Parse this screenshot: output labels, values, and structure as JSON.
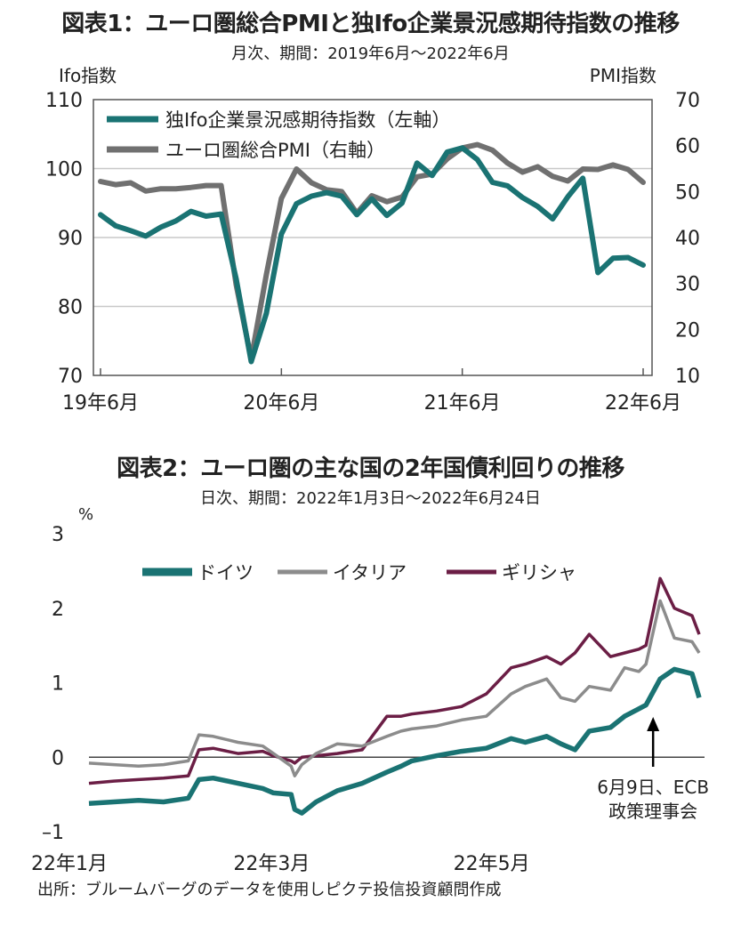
{
  "chart_data": [
    {
      "type": "line",
      "title": "図表1：ユーロ圏総合PMIと独Ifo企業景況感期待指数の推移",
      "subtitle": "月次、期間：2019年6月～2022年6月",
      "y_left_label": "Ifo指数",
      "y_right_label": "PMI指数",
      "y_left_ticks": [
        "70",
        "80",
        "90",
        "100",
        "110"
      ],
      "y_right_ticks": [
        "10",
        "20",
        "30",
        "40",
        "50",
        "60",
        "70"
      ],
      "ylim_left": [
        70,
        110
      ],
      "ylim_right": [
        10,
        70
      ],
      "x_tick_labels": [
        "19年6月",
        "20年6月",
        "21年6月",
        "22年6月"
      ],
      "x_tick_months": [
        0,
        12,
        24,
        36
      ],
      "x": [
        0,
        1,
        2,
        3,
        4,
        5,
        6,
        7,
        8,
        9,
        10,
        11,
        12,
        13,
        14,
        15,
        16,
        17,
        18,
        19,
        20,
        21,
        22,
        23,
        24,
        25,
        26,
        27,
        28,
        29,
        30,
        31,
        32,
        33,
        34,
        35,
        36
      ],
      "grid": true,
      "legend_position": "top-left",
      "series": [
        {
          "name": "独Ifo企業景況感期待指数（左軸）",
          "axis": "left",
          "color": "#1a7373",
          "values": [
            93.3,
            91.7,
            91.0,
            90.2,
            91.5,
            92.4,
            93.8,
            93.1,
            93.4,
            84.0,
            72.0,
            79.0,
            90.5,
            94.9,
            96.0,
            96.5,
            96.0,
            93.3,
            95.6,
            93.2,
            95.0,
            100.8,
            99.0,
            102.4,
            103.0,
            101.3,
            98.0,
            97.5,
            95.8,
            94.5,
            92.7,
            95.9,
            98.6,
            84.9,
            87.0,
            87.1,
            86.0
          ]
        },
        {
          "name": "ユーロ圏総合PMI（右軸）",
          "axis": "right",
          "color": "#707070",
          "values": [
            52.2,
            51.5,
            51.9,
            50.1,
            50.6,
            50.6,
            50.9,
            51.3,
            51.3,
            29.7,
            13.6,
            31.9,
            48.5,
            54.9,
            51.9,
            50.4,
            50.0,
            45.3,
            49.1,
            47.8,
            48.8,
            53.2,
            53.8,
            57.1,
            59.5,
            60.2,
            59.0,
            56.2,
            54.2,
            55.4,
            53.3,
            52.3,
            54.9,
            54.8,
            55.8,
            54.8,
            52.0
          ]
        }
      ]
    },
    {
      "type": "line",
      "title": "図表2：ユーロ圏の主な国の2年国債利回りの推移",
      "subtitle": "日次、期間：2022年1月3日～2022年6月24日",
      "ylabel": "%",
      "y_ticks": [
        "–1",
        "0",
        "1",
        "2",
        "3"
      ],
      "ylim": [
        -1,
        3
      ],
      "x_tick_labels": [
        "22年1月",
        "22年3月",
        "22年5月"
      ],
      "x_tick_dates": [
        "2022-01-03",
        "2022-03-01",
        "2022-05-02"
      ],
      "x_end_date": "2022-06-24",
      "legend_position": "top",
      "annotation": {
        "lines": [
          "6月9日、ECB",
          "政策理事会"
        ],
        "date": "2022-06-09"
      },
      "series": [
        {
          "name": "ドイツ",
          "color": "#1a7373",
          "dates": [
            "2022-01-03",
            "2022-01-10",
            "2022-01-17",
            "2022-01-24",
            "2022-01-31",
            "2022-02-03",
            "2022-02-07",
            "2022-02-14",
            "2022-02-21",
            "2022-02-24",
            "2022-03-01",
            "2022-03-02",
            "2022-03-04",
            "2022-03-08",
            "2022-03-14",
            "2022-03-21",
            "2022-03-28",
            "2022-04-01",
            "2022-04-04",
            "2022-04-11",
            "2022-04-18",
            "2022-04-25",
            "2022-05-02",
            "2022-05-06",
            "2022-05-12",
            "2022-05-16",
            "2022-05-20",
            "2022-05-24",
            "2022-05-30",
            "2022-06-03",
            "2022-06-07",
            "2022-06-09",
            "2022-06-13",
            "2022-06-17",
            "2022-06-22",
            "2022-06-24"
          ],
          "values": [
            -0.62,
            -0.6,
            -0.58,
            -0.6,
            -0.55,
            -0.3,
            -0.28,
            -0.35,
            -0.42,
            -0.48,
            -0.5,
            -0.7,
            -0.75,
            -0.6,
            -0.45,
            -0.35,
            -0.2,
            -0.12,
            -0.05,
            0.02,
            0.08,
            0.12,
            0.25,
            0.2,
            0.28,
            0.18,
            0.1,
            0.35,
            0.4,
            0.55,
            0.65,
            0.7,
            1.05,
            1.18,
            1.12,
            0.8
          ]
        },
        {
          "name": "イタリア",
          "color": "#8c8c8c",
          "dates": [
            "2022-01-03",
            "2022-01-10",
            "2022-01-17",
            "2022-01-24",
            "2022-01-31",
            "2022-02-03",
            "2022-02-07",
            "2022-02-14",
            "2022-02-21",
            "2022-02-24",
            "2022-03-01",
            "2022-03-02",
            "2022-03-04",
            "2022-03-08",
            "2022-03-14",
            "2022-03-21",
            "2022-03-28",
            "2022-04-01",
            "2022-04-04",
            "2022-04-11",
            "2022-04-18",
            "2022-04-25",
            "2022-05-02",
            "2022-05-06",
            "2022-05-12",
            "2022-05-16",
            "2022-05-20",
            "2022-05-24",
            "2022-05-30",
            "2022-06-03",
            "2022-06-07",
            "2022-06-09",
            "2022-06-13",
            "2022-06-17",
            "2022-06-22",
            "2022-06-24"
          ],
          "values": [
            -0.08,
            -0.1,
            -0.12,
            -0.1,
            -0.05,
            0.3,
            0.28,
            0.2,
            0.15,
            0.05,
            -0.12,
            -0.25,
            -0.1,
            0.05,
            0.18,
            0.15,
            0.28,
            0.35,
            0.38,
            0.42,
            0.5,
            0.55,
            0.85,
            0.95,
            1.05,
            0.8,
            0.75,
            0.95,
            0.9,
            1.2,
            1.15,
            1.25,
            2.1,
            1.6,
            1.55,
            1.4
          ]
        },
        {
          "name": "ギリシャ",
          "color": "#6b1e45",
          "dates": [
            "2022-01-03",
            "2022-01-10",
            "2022-01-17",
            "2022-01-24",
            "2022-01-31",
            "2022-02-03",
            "2022-02-07",
            "2022-02-14",
            "2022-02-21",
            "2022-02-24",
            "2022-03-01",
            "2022-03-02",
            "2022-03-04",
            "2022-03-08",
            "2022-03-14",
            "2022-03-21",
            "2022-03-28",
            "2022-04-01",
            "2022-04-04",
            "2022-04-11",
            "2022-04-18",
            "2022-04-25",
            "2022-05-02",
            "2022-05-06",
            "2022-05-12",
            "2022-05-16",
            "2022-05-20",
            "2022-05-24",
            "2022-05-30",
            "2022-06-03",
            "2022-06-07",
            "2022-06-09",
            "2022-06-13",
            "2022-06-17",
            "2022-06-22",
            "2022-06-24"
          ],
          "values": [
            -0.35,
            -0.32,
            -0.3,
            -0.28,
            -0.25,
            0.1,
            0.12,
            0.05,
            0.08,
            0.02,
            -0.05,
            -0.08,
            0.0,
            0.02,
            0.05,
            0.1,
            0.55,
            0.55,
            0.58,
            0.62,
            0.68,
            0.85,
            1.2,
            1.25,
            1.35,
            1.25,
            1.4,
            1.65,
            1.35,
            1.4,
            1.45,
            1.5,
            2.4,
            2.0,
            1.9,
            1.65
          ]
        }
      ]
    }
  ],
  "source_text": "出所：ブルームバーグのデータを使用しピクテ投信投資顧問作成"
}
